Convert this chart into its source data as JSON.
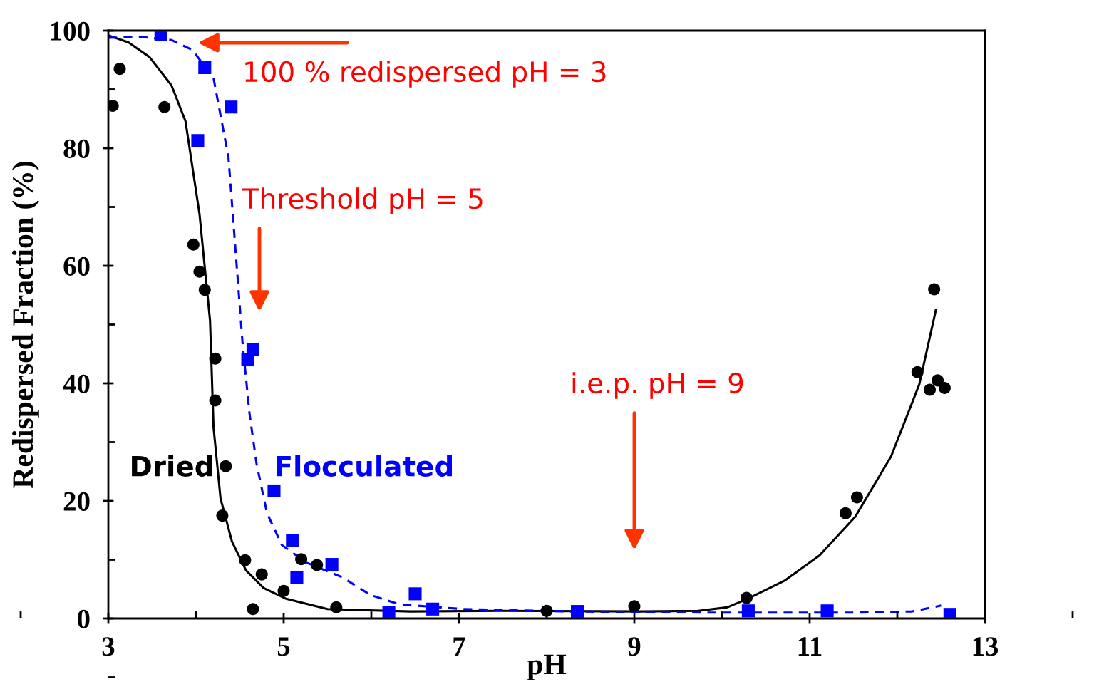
{
  "chart_data": {
    "type": "scatter",
    "xlabel": "pH",
    "ylabel": "Redispersed Fraction (%)",
    "xlim": [
      3,
      13
    ],
    "xticks": [
      3,
      5,
      7,
      9,
      11,
      13
    ],
    "ylim": [
      0,
      100
    ],
    "yticks": [
      0,
      20,
      40,
      60,
      80,
      100
    ],
    "grid": false,
    "legend": false,
    "series": [
      {
        "name": "Dried",
        "marker": "circle",
        "color": "#000000",
        "x": [
          3.05,
          3.13,
          3.64,
          3.97,
          4.04,
          4.1,
          4.22,
          4.22,
          4.34,
          4.3,
          4.56,
          4.75,
          5.0,
          4.65,
          5.2,
          5.38,
          5.6,
          8.0,
          9.0,
          10.28,
          11.41,
          11.54,
          12.23,
          12.37,
          12.46,
          12.54,
          12.42
        ],
        "values": [
          87.2,
          93.5,
          87.0,
          63.6,
          59.0,
          55.9,
          44.2,
          37.1,
          25.9,
          17.5,
          9.9,
          7.5,
          4.7,
          1.6,
          10.1,
          9.1,
          1.9,
          1.3,
          2.1,
          3.5,
          17.9,
          20.6,
          41.9,
          38.9,
          40.5,
          39.2,
          56.0
        ]
      },
      {
        "name": "Flocculated",
        "marker": "square",
        "color": "#0000ff",
        "x": [
          3.6,
          4.1,
          4.02,
          4.4,
          4.59,
          4.65,
          4.89,
          5.1,
          5.15,
          5.55,
          6.2,
          6.5,
          6.7,
          8.35,
          10.3,
          11.2,
          12.6
        ],
        "values": [
          99.3,
          93.7,
          81.3,
          87.0,
          44.0,
          45.8,
          21.7,
          13.3,
          7.0,
          9.2,
          1.0,
          4.2,
          1.6,
          1.2,
          1.3,
          1.3,
          0.7
        ]
      },
      {
        "type": "line",
        "line_style": "solid",
        "color": "#000000",
        "x": [
          3.0,
          3.23,
          3.47,
          3.72,
          3.88,
          4.04,
          4.16,
          4.2,
          4.28,
          4.41,
          4.57,
          4.77,
          5.02,
          5.5,
          6.45,
          7.46,
          9.08,
          9.73,
          10.06,
          10.3,
          10.71,
          11.11,
          11.52,
          11.93,
          12.25,
          12.44
        ],
        "values": [
          99.2,
          98,
          95.5,
          90.7,
          84.6,
          68.8,
          50.7,
          32.5,
          20.4,
          13.1,
          8.2,
          5.2,
          3.4,
          1.6,
          1.2,
          1.3,
          1.2,
          1.3,
          1.9,
          3.4,
          6.4,
          10.7,
          17.3,
          27.6,
          39.8,
          52.5
        ]
      },
      {
        "type": "line",
        "line_style": "dashed",
        "color": "#0000ff",
        "x": [
          3.0,
          3.39,
          3.72,
          3.96,
          4.2,
          4.37,
          4.45,
          4.53,
          4.61,
          4.69,
          4.81,
          4.98,
          5.26,
          5.67,
          5.99,
          6.32,
          7.05,
          8.27,
          9.89,
          11.52,
          12.17,
          12.5
        ],
        "values": [
          98.8,
          98.9,
          98.4,
          96.7,
          91.9,
          78.5,
          62.8,
          47,
          34.9,
          26.4,
          17.9,
          12.5,
          9.5,
          7.0,
          4.0,
          2.4,
          1.6,
          1.2,
          1.0,
          1.0,
          1.2,
          2.2
        ]
      }
    ],
    "annotations": [
      "100 % redispersed pH = 3",
      "Threshold pH = 5",
      "i.e.p. pH = 9"
    ]
  }
}
